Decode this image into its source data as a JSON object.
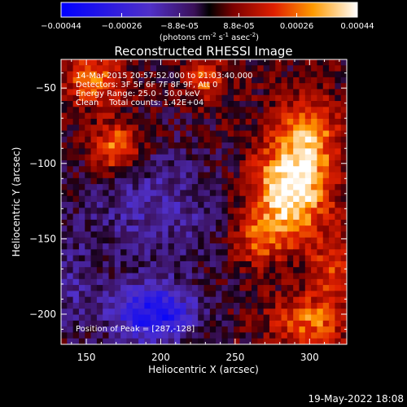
{
  "chart_data": {
    "type": "heatmap",
    "title": "Reconstructed RHESSI Image",
    "xlabel": "Heliocentric X (arcsec)",
    "ylabel": "Heliocentric Y (arcsec)",
    "xlim": [
      133,
      325
    ],
    "ylim": [
      -220,
      -31
    ],
    "xticks": [
      150,
      200,
      250,
      300
    ],
    "yticks": [
      -50,
      -100,
      -150,
      -200
    ],
    "colorbar": {
      "colormap": "rhessi-blue-purple-red-yellow-white",
      "range": [
        -0.00044,
        0.00044
      ],
      "tick_labels": [
        "-0.00044",
        "-0.00026",
        "-8.8e-05",
        "8.8e-05",
        "0.00026",
        "0.00044"
      ],
      "label_parts": [
        "(photons cm",
        "-2",
        " s",
        "-1",
        " asec",
        "-2",
        ")"
      ]
    },
    "info_lines": [
      "14-Mar-2015 20:57:52.000 to 21:03:40.000",
      "Detectors: 3F 5F 6F 7F 8F 9F, Att 0",
      "Energy Range: 25.0 - 50.0 keV",
      "Clean    Total counts: 1.42E+04"
    ],
    "peak_label": "Position of Peak = [287,-128]",
    "peak": {
      "x": 287,
      "y": -128
    },
    "sources": [
      {
        "x": 287,
        "y": -118,
        "amp": 1.0,
        "sx": 18,
        "sy": 22
      },
      {
        "x": 300,
        "y": -80,
        "amp": 0.55,
        "sx": 14,
        "sy": 18
      },
      {
        "x": 265,
        "y": -150,
        "amp": 0.45,
        "sx": 12,
        "sy": 12
      },
      {
        "x": 170,
        "y": -90,
        "amp": 0.65,
        "sx": 12,
        "sy": 12
      },
      {
        "x": 155,
        "y": -45,
        "amp": 0.55,
        "sx": 14,
        "sy": 12
      },
      {
        "x": 230,
        "y": -45,
        "amp": 0.45,
        "sx": 10,
        "sy": 10
      },
      {
        "x": 300,
        "y": -205,
        "amp": 0.55,
        "sx": 18,
        "sy": 12
      },
      {
        "x": 315,
        "y": -170,
        "amp": 0.4,
        "sx": 10,
        "sy": 14
      },
      {
        "x": 195,
        "y": -200,
        "amp": -0.85,
        "sx": 20,
        "sy": 14
      },
      {
        "x": 195,
        "y": -130,
        "amp": -0.35,
        "sx": 35,
        "sy": 30
      },
      {
        "x": 140,
        "y": -185,
        "amp": -0.25,
        "sx": 12,
        "sy": 25
      }
    ],
    "baseline": 0.05,
    "noise": 0.18
  },
  "footer_date": "19-May-2022 18:08"
}
